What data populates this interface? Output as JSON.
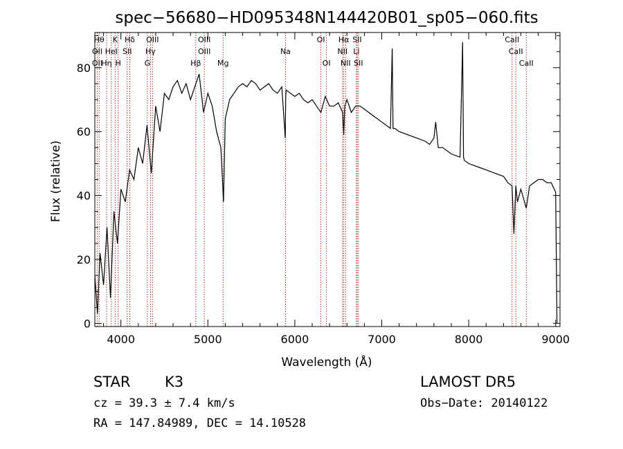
{
  "chart_data": {
    "type": "line",
    "title": "spec−56680−HD095348N144420B01_sp05−060.fits",
    "xlabel": "Wavelength (Å)",
    "ylabel": "Flux (relative)",
    "xlim": [
      3700,
      9050
    ],
    "ylim": [
      -1,
      91
    ],
    "x_ticks": [
      4000,
      5000,
      6000,
      7000,
      8000,
      9000
    ],
    "y_ticks": [
      0,
      20,
      40,
      60,
      80
    ],
    "grid": false,
    "series": [
      {
        "x": [
          3700,
          3730,
          3760,
          3800,
          3840,
          3880,
          3920,
          3960,
          4000,
          4050,
          4100,
          4150,
          4200,
          4250,
          4300,
          4350,
          4400,
          4450,
          4500,
          4550,
          4600,
          4650,
          4700,
          4750,
          4800,
          4850,
          4900,
          4950,
          5000,
          5050,
          5100,
          5150,
          5180,
          5200,
          5250,
          5300,
          5350,
          5400,
          5450,
          5500,
          5550,
          5600,
          5650,
          5700,
          5750,
          5800,
          5850,
          5890,
          5895,
          5900,
          5950,
          6000,
          6050,
          6100,
          6150,
          6200,
          6250,
          6300,
          6350,
          6400,
          6450,
          6500,
          6550,
          6563,
          6575,
          6600,
          6650,
          6700,
          6750,
          6800,
          6850,
          6900,
          6950,
          7000,
          7050,
          7100,
          7120,
          7130,
          7150,
          7200,
          7300,
          7400,
          7500,
          7550,
          7600,
          7620,
          7650,
          7700,
          7800,
          7900,
          7930,
          7940,
          7950,
          8000,
          8100,
          8200,
          8300,
          8400,
          8450,
          8498,
          8520,
          8542,
          8560,
          8600,
          8662,
          8700,
          8750,
          8800,
          8850,
          8900,
          8950,
          9000,
          9010,
          9015
        ],
        "y": [
          15,
          3,
          22,
          12,
          30,
          8,
          35,
          25,
          42,
          38,
          48,
          45,
          55,
          50,
          62,
          47,
          68,
          60,
          72,
          70,
          74,
          76,
          72,
          75,
          70,
          74,
          78,
          66,
          72,
          68,
          60,
          55,
          38,
          64,
          70,
          72,
          74,
          75,
          74,
          76,
          75,
          73,
          74,
          75,
          73,
          72,
          74,
          58,
          70,
          73,
          72,
          71,
          72,
          70,
          69,
          70,
          68,
          66,
          71,
          68,
          68,
          69,
          66,
          59,
          68,
          70,
          66,
          68,
          68,
          67,
          66,
          65,
          64,
          63,
          62,
          61,
          86,
          61,
          61,
          60,
          59,
          58,
          57,
          56,
          58,
          63,
          55,
          55,
          53,
          52,
          88,
          52,
          51,
          50,
          49,
          48,
          47,
          46,
          44,
          43,
          28,
          43,
          38,
          42,
          36,
          43,
          44,
          45,
          45,
          44,
          44,
          41,
          13,
          0
        ]
      }
    ],
    "line_labels": [
      {
        "x": 3750,
        "text": "Hθ",
        "row": 1
      },
      {
        "x": 3727,
        "text": "OII",
        "row": 2
      },
      {
        "x": 3727,
        "text": "OII",
        "row": 3
      },
      {
        "x": 3835,
        "text": "Hη",
        "row": 3
      },
      {
        "x": 3934,
        "text": "K",
        "row": 1
      },
      {
        "x": 3889,
        "text": "HeI",
        "row": 2
      },
      {
        "x": 3968,
        "text": "H",
        "row": 3
      },
      {
        "x": 4102,
        "text": "Hδ",
        "row": 1
      },
      {
        "x": 4072,
        "text": "SII",
        "row": 2
      },
      {
        "x": 4363,
        "text": "OIII",
        "row": 1
      },
      {
        "x": 4340,
        "text": "Hγ",
        "row": 2
      },
      {
        "x": 4304,
        "text": "G",
        "row": 3
      },
      {
        "x": 4959,
        "text": "OIII",
        "row": 1
      },
      {
        "x": 4959,
        "text": "OIII",
        "row": 2
      },
      {
        "x": 4861,
        "text": "Hβ",
        "row": 3
      },
      {
        "x": 5175,
        "text": "Mg",
        "row": 3
      },
      {
        "x": 5893,
        "text": "Na",
        "row": 2
      },
      {
        "x": 6300,
        "text": "OI",
        "row": 1
      },
      {
        "x": 6364,
        "text": "OI",
        "row": 3
      },
      {
        "x": 6563,
        "text": "Hα",
        "row": 1
      },
      {
        "x": 6548,
        "text": "NII",
        "row": 2
      },
      {
        "x": 6584,
        "text": "NII",
        "row": 3
      },
      {
        "x": 6717,
        "text": "SII",
        "row": 1
      },
      {
        "x": 6708,
        "text": "Li",
        "row": 2
      },
      {
        "x": 6731,
        "text": "SII",
        "row": 3
      },
      {
        "x": 8498,
        "text": "CaII",
        "row": 1
      },
      {
        "x": 8542,
        "text": "CaII",
        "row": 2
      },
      {
        "x": 8662,
        "text": "CaII",
        "row": 3
      }
    ]
  },
  "info": {
    "class": "STAR",
    "subclass": "K3",
    "survey": "LAMOST DR5",
    "redshift": "cz = 39.3 ± 7.4 km/s",
    "obs_date": "Obs−Date: 20140122",
    "coords": "RA = 147.84989, DEC =  14.10528"
  },
  "colors": {
    "line_marker": "#b03030",
    "spectrum": "#000000",
    "axes": "#000000"
  }
}
